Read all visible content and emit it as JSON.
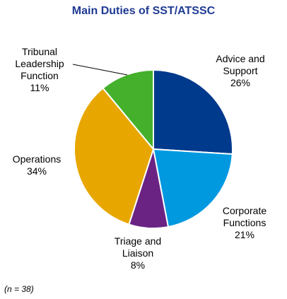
{
  "chart_data": {
    "type": "pie",
    "title": "Main Duties of SST/ATSSC",
    "note": "(n = 38)",
    "slices": [
      {
        "lines": [
          "Advice and",
          "Support"
        ],
        "pct_label": "26%",
        "value": 26,
        "color": "#003a8c"
      },
      {
        "lines": [
          "Corporate",
          "Functions"
        ],
        "pct_label": "21%",
        "value": 21,
        "color": "#0099e0"
      },
      {
        "lines": [
          "Triage and",
          "Liaison"
        ],
        "pct_label": "8%",
        "value": 8,
        "color": "#6a2383"
      },
      {
        "lines": [
          "Operations"
        ],
        "pct_label": "34%",
        "value": 34,
        "color": "#e8a700"
      },
      {
        "lines": [
          "Tribunal",
          "Leadership",
          "Function"
        ],
        "pct_label": "11%",
        "value": 11,
        "color": "#44b02b"
      }
    ]
  }
}
